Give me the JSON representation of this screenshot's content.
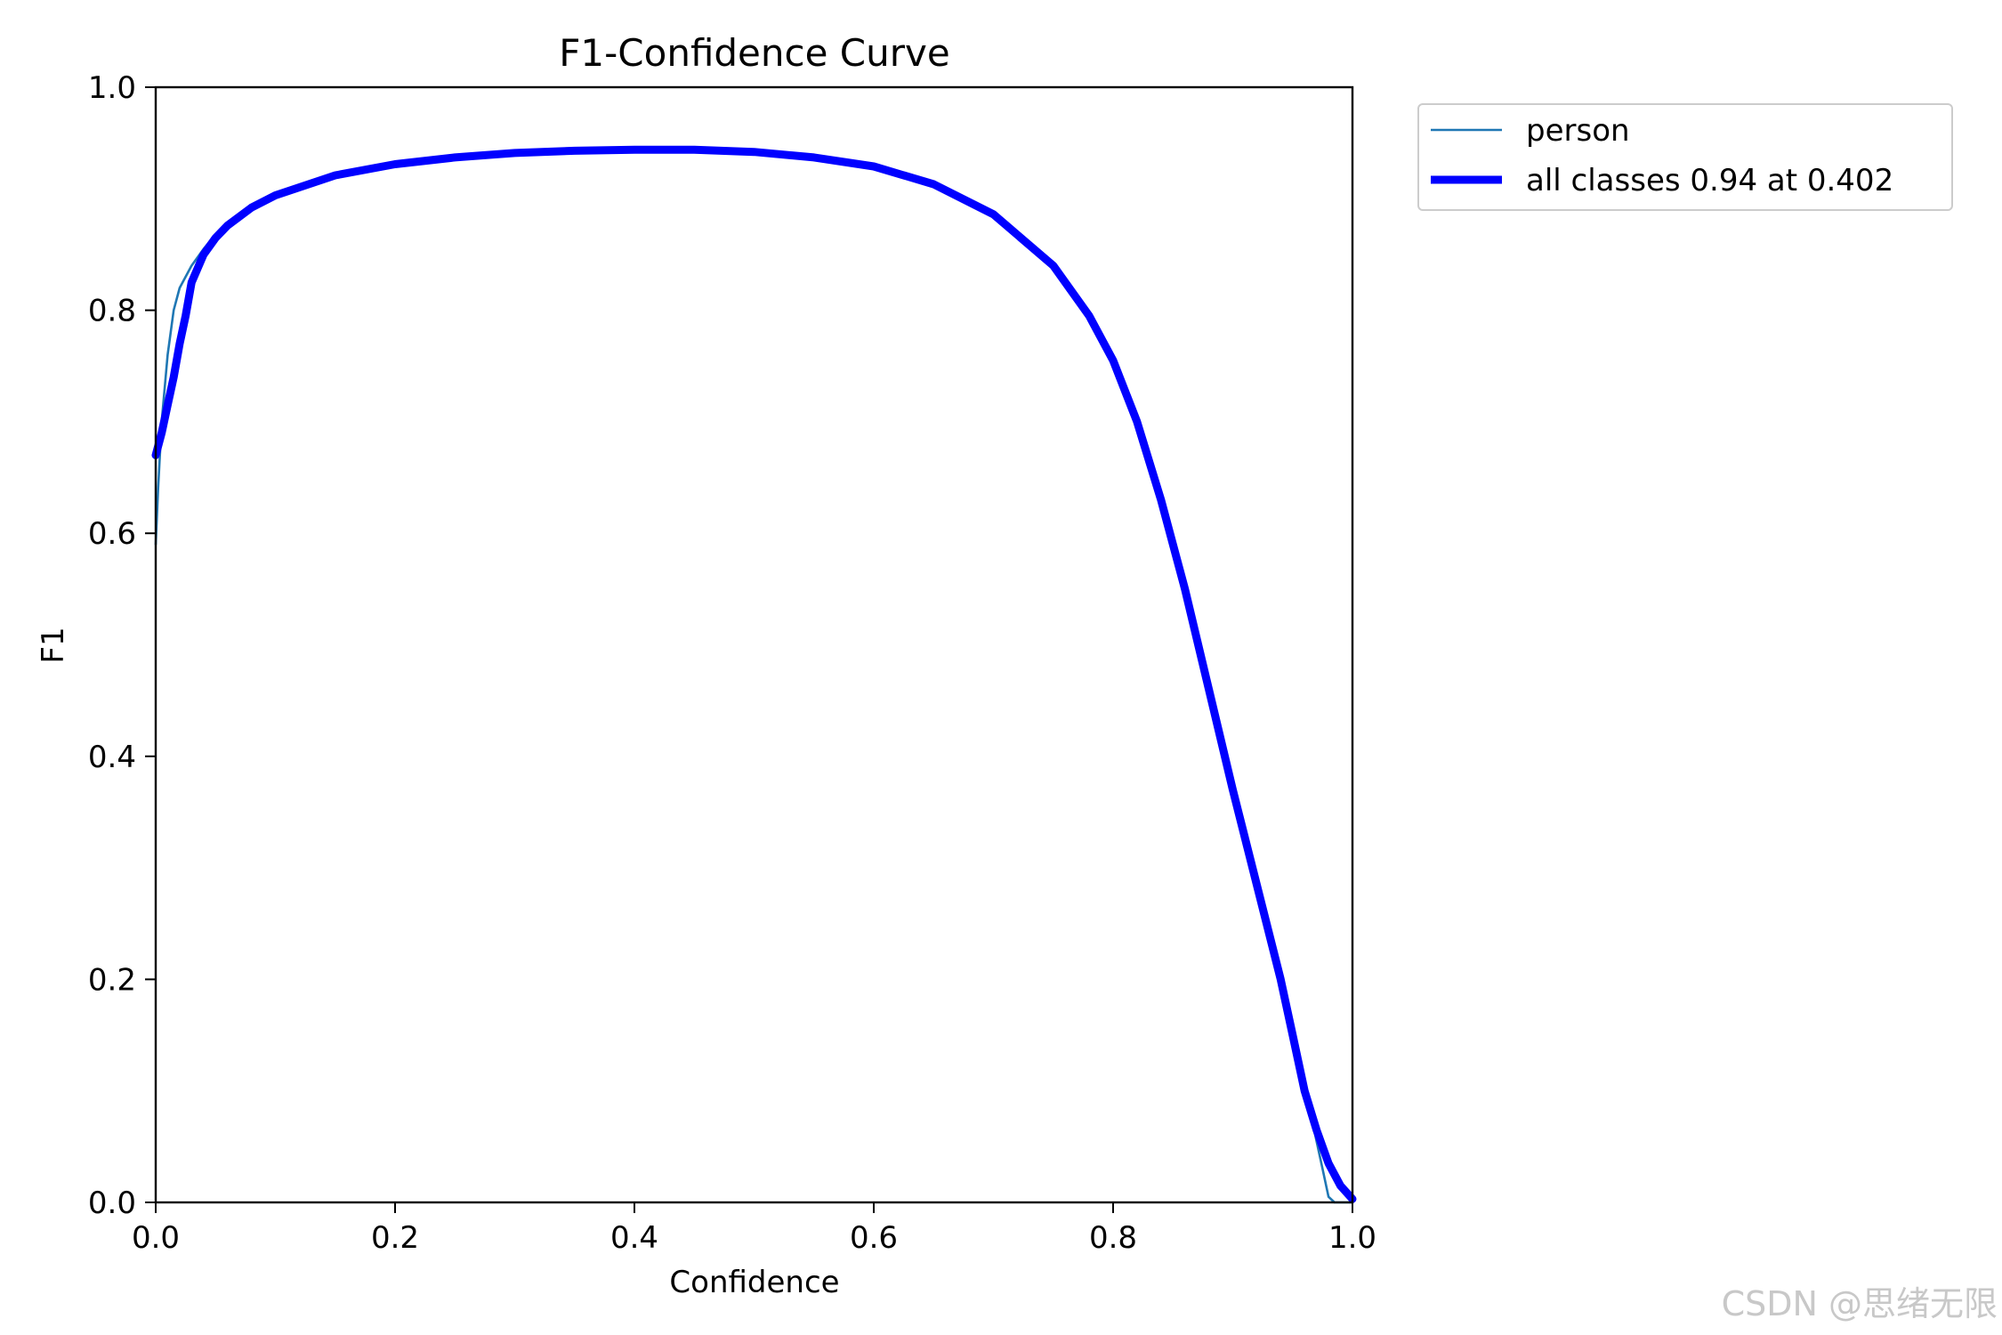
{
  "chart_data": {
    "type": "line",
    "title": "F1-Confidence Curve",
    "xlabel": "Confidence",
    "ylabel": "F1",
    "xlim": [
      0.0,
      1.0
    ],
    "ylim": [
      0.0,
      1.0
    ],
    "grid": false,
    "legend_position": "outside-top-right",
    "xticks": [
      "0.0",
      "0.2",
      "0.4",
      "0.6",
      "0.8",
      "1.0"
    ],
    "yticks": [
      "0.0",
      "0.2",
      "0.4",
      "0.6",
      "0.8",
      "1.0"
    ],
    "series": [
      {
        "name": "person",
        "color": "#1f77b4",
        "style": "thin",
        "x": [
          0.0,
          0.002,
          0.005,
          0.01,
          0.015,
          0.02,
          0.03,
          0.04,
          0.05,
          0.06,
          0.08,
          0.1,
          0.15,
          0.2,
          0.25,
          0.3,
          0.35,
          0.4,
          0.45,
          0.5,
          0.55,
          0.6,
          0.65,
          0.7,
          0.75,
          0.78,
          0.8,
          0.82,
          0.84,
          0.86,
          0.88,
          0.9,
          0.92,
          0.94,
          0.95,
          0.96,
          0.965,
          0.97,
          0.975,
          0.98,
          0.985,
          0.99,
          1.0
        ],
        "y": [
          0.59,
          0.64,
          0.7,
          0.76,
          0.8,
          0.82,
          0.84,
          0.855,
          0.868,
          0.878,
          0.893,
          0.904,
          0.922,
          0.932,
          0.938,
          0.941,
          0.943,
          0.944,
          0.944,
          0.942,
          0.937,
          0.929,
          0.913,
          0.886,
          0.84,
          0.795,
          0.755,
          0.7,
          0.63,
          0.55,
          0.46,
          0.37,
          0.285,
          0.2,
          0.15,
          0.1,
          0.08,
          0.055,
          0.03,
          0.005,
          0.0,
          0.0,
          0.0
        ]
      },
      {
        "name": "all classes 0.94 at 0.402",
        "color": "#0000ff",
        "style": "thick",
        "x": [
          0.0,
          0.005,
          0.01,
          0.015,
          0.02,
          0.025,
          0.03,
          0.04,
          0.05,
          0.06,
          0.08,
          0.1,
          0.15,
          0.2,
          0.25,
          0.3,
          0.35,
          0.4,
          0.45,
          0.5,
          0.55,
          0.6,
          0.65,
          0.7,
          0.75,
          0.78,
          0.8,
          0.82,
          0.84,
          0.86,
          0.88,
          0.9,
          0.92,
          0.94,
          0.95,
          0.96,
          0.97,
          0.98,
          0.99,
          1.0
        ],
        "y": [
          0.67,
          0.69,
          0.715,
          0.74,
          0.77,
          0.795,
          0.825,
          0.85,
          0.865,
          0.876,
          0.892,
          0.903,
          0.921,
          0.931,
          0.937,
          0.941,
          0.943,
          0.944,
          0.944,
          0.942,
          0.937,
          0.929,
          0.913,
          0.886,
          0.84,
          0.795,
          0.755,
          0.7,
          0.63,
          0.55,
          0.46,
          0.37,
          0.285,
          0.2,
          0.15,
          0.1,
          0.065,
          0.035,
          0.015,
          0.003
        ]
      }
    ]
  },
  "watermark": "CSDN @思绪无限"
}
